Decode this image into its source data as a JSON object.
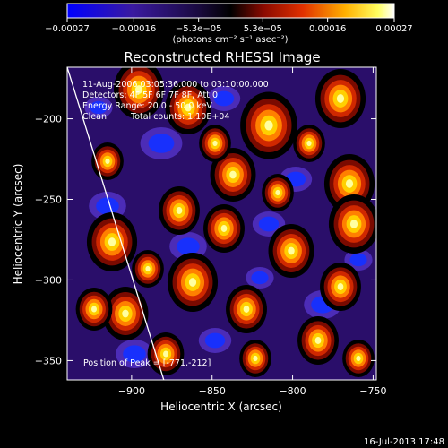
{
  "chart_data": {
    "type": "heatmap",
    "title": "Reconstructed RHESSI Image",
    "xlabel": "Heliocentric X (arcsec)",
    "ylabel": "Heliocentric Y (arcsec)",
    "xlim": [
      -940,
      -748
    ],
    "ylim": [
      -362,
      -168
    ],
    "x_ticks": [
      -900,
      -850,
      -800,
      -750
    ],
    "y_ticks": [
      -350,
      -300,
      -250,
      -200
    ],
    "x_tick_labels": [
      "−900",
      "−850",
      "−800",
      "−750"
    ],
    "y_tick_labels": [
      "−350",
      "−300",
      "−250",
      "−200"
    ],
    "colorbar": {
      "range": [
        -0.00027,
        0.00027
      ],
      "tick_values": [
        -0.00027,
        -0.00016,
        -5.3e-05,
        5.3e-05,
        0.00016,
        0.00027
      ],
      "tick_labels": [
        "−0.00027",
        "−0.00016",
        "−5.3e−05",
        "5.3e−05",
        "0.00016",
        "0.00027"
      ],
      "unit_label": "(photons cm⁻² s⁻¹ asec⁻²)",
      "colors": [
        "#0000ff",
        "#3a1aa0",
        "#1a0a40",
        "#000000",
        "#8a0a00",
        "#e03000",
        "#ffb000",
        "#ffff60",
        "#ffffff"
      ]
    },
    "annotations": {
      "time_range": "11-Aug-2006 03:05:36.000 to 03:10:00.000",
      "detectors": "Detectors: 4F 5F 6F 7F 8F, Att 0",
      "energy": "Energy Range: 20.0 - 50.0 keV",
      "method": "Clean",
      "counts": "Total counts: 1.10E+04",
      "peak": "Position of Peak = [-771,-212]"
    },
    "peak": [
      -771,
      -212
    ],
    "limb_line": [
      [
        -940,
        -168
      ],
      [
        -880,
        -362
      ]
    ]
  },
  "footer": {
    "timestamp": "16-Jul-2013 17:48"
  }
}
